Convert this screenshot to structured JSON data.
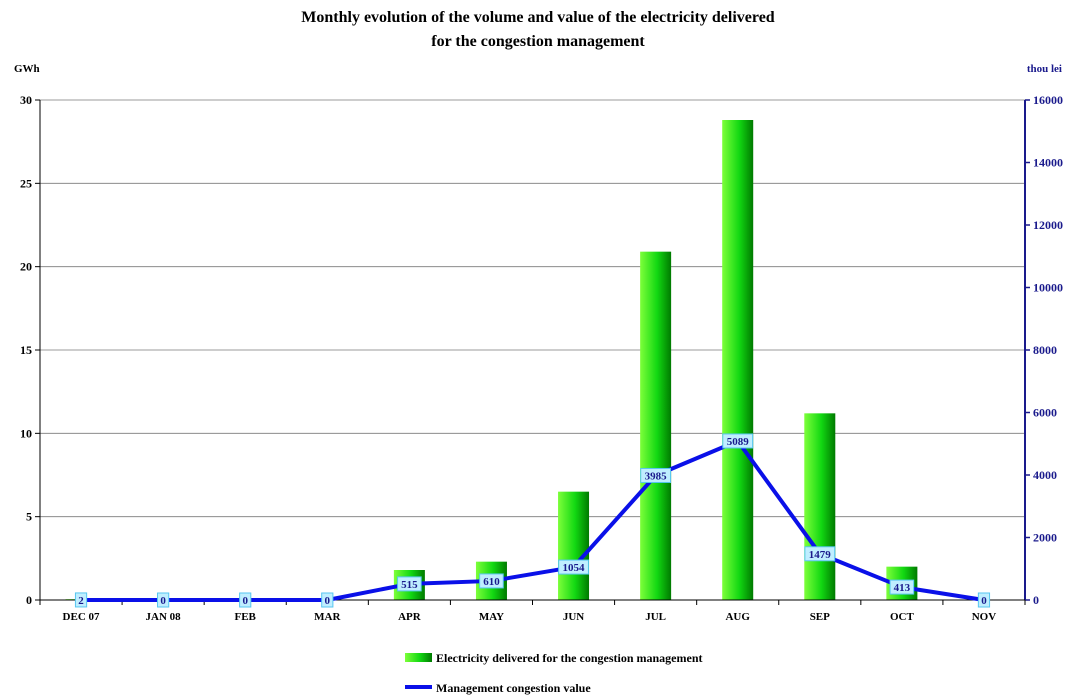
{
  "chart_data": {
    "type": "bar",
    "title_line1": "Monthly evolution of the volume and value of the electricity delivered",
    "title_line2": "for the congestion management",
    "ylabel_left": "GWh",
    "ylabel_right": "thou lei",
    "categories": [
      "DEC 07",
      "JAN 08",
      "FEB",
      "MAR",
      "APR",
      "MAY",
      "JUN",
      "JUL",
      "AUG",
      "SEP",
      "OCT",
      "NOV"
    ],
    "ylim_left": [
      0,
      30
    ],
    "yticks_left": [
      0,
      5,
      10,
      15,
      20,
      25,
      30
    ],
    "ylim_right": [
      0,
      16000
    ],
    "yticks_right": [
      0,
      2000,
      4000,
      6000,
      8000,
      10000,
      12000,
      14000,
      16000
    ],
    "grid": true,
    "legend_position": "bottom-center",
    "series": [
      {
        "name": "Electricity delivered for the congestion management",
        "type": "bar",
        "axis": "left",
        "color": "#1fdc1f",
        "values": [
          0.05,
          0,
          0,
          0,
          1.8,
          2.3,
          6.5,
          20.9,
          28.8,
          11.2,
          2.0,
          0
        ]
      },
      {
        "name": "Management congestion value",
        "type": "line",
        "axis": "right",
        "color": "#0a10e8",
        "values": [
          2,
          0,
          0,
          0,
          515,
          610,
          1054,
          3985,
          5089,
          1479,
          413,
          0
        ],
        "labels": [
          "2",
          "0",
          "0",
          "0",
          "515",
          "610",
          "1054",
          "3985",
          "5089",
          "1479",
          "413",
          "0"
        ]
      }
    ]
  }
}
